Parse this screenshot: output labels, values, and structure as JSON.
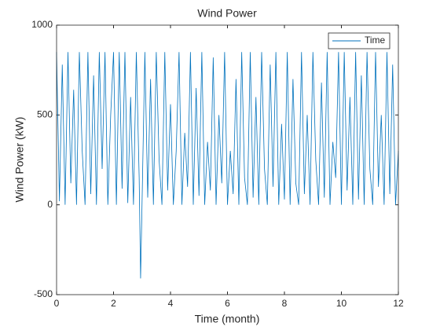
{
  "chart_data": {
    "type": "line",
    "title": "Wind Power",
    "xlabel": "Time (month)",
    "ylabel": "Wind Power (kW)",
    "x": [
      0,
      0.1,
      0.2,
      0.3,
      0.4,
      0.5,
      0.6,
      0.7,
      0.8,
      0.9,
      1,
      1.1,
      1.2,
      1.3,
      1.4,
      1.5,
      1.6,
      1.7,
      1.8,
      1.9,
      2,
      2.1,
      2.2,
      2.3,
      2.4,
      2.5,
      2.6,
      2.7,
      2.8,
      2.9,
      2.95,
      3,
      3.1,
      3.2,
      3.3,
      3.4,
      3.5,
      3.6,
      3.7,
      3.8,
      3.9,
      4,
      4.1,
      4.2,
      4.3,
      4.4,
      4.5,
      4.6,
      4.7,
      4.8,
      4.9,
      5,
      5.1,
      5.2,
      5.3,
      5.4,
      5.5,
      5.6,
      5.7,
      5.8,
      5.9,
      6,
      6.1,
      6.2,
      6.3,
      6.4,
      6.5,
      6.6,
      6.7,
      6.8,
      6.9,
      7,
      7.1,
      7.2,
      7.3,
      7.4,
      7.5,
      7.6,
      7.7,
      7.8,
      7.9,
      8,
      8.1,
      8.2,
      8.3,
      8.4,
      8.5,
      8.6,
      8.7,
      8.8,
      8.9,
      9,
      9.1,
      9.2,
      9.3,
      9.4,
      9.5,
      9.6,
      9.7,
      9.8,
      9.9,
      10,
      10.1,
      10.2,
      10.3,
      10.4,
      10.5,
      10.6,
      10.7,
      10.8,
      10.9,
      11,
      11.1,
      11.2,
      11.3,
      11.4,
      11.5,
      11.6,
      11.7,
      11.8,
      11.9,
      12
    ],
    "series": [
      {
        "name": "Time",
        "color": "#0072BD",
        "values": [
          850,
          20,
          780,
          0,
          850,
          120,
          640,
          0,
          850,
          300,
          0,
          850,
          60,
          720,
          0,
          850,
          200,
          850,
          0,
          500,
          850,
          0,
          850,
          90,
          850,
          10,
          600,
          0,
          850,
          150,
          -410,
          0,
          850,
          40,
          700,
          0,
          850,
          250,
          0,
          850,
          80,
          560,
          0,
          300,
          850,
          0,
          400,
          100,
          850,
          0,
          650,
          50,
          850,
          0,
          350,
          80,
          820,
          0,
          500,
          120,
          850,
          0,
          300,
          60,
          700,
          0,
          850,
          150,
          0,
          850,
          40,
          600,
          0,
          850,
          200,
          0,
          780,
          100,
          850,
          0,
          450,
          30,
          850,
          0,
          700,
          120,
          0,
          850,
          60,
          500,
          0,
          850,
          250,
          0,
          680,
          40,
          850,
          0,
          350,
          150,
          850,
          0,
          850,
          80,
          600,
          0,
          850,
          30,
          720,
          0,
          850,
          200,
          0,
          850,
          100,
          500,
          0,
          850,
          60,
          780,
          0,
          300
        ]
      }
    ],
    "xlim": [
      0,
      12
    ],
    "xticks": [
      0,
      2,
      4,
      6,
      8,
      10,
      12
    ],
    "ylim": [
      -500,
      1000
    ],
    "yticks": [
      -500,
      0,
      500,
      1000
    ],
    "legend": "upper right"
  }
}
